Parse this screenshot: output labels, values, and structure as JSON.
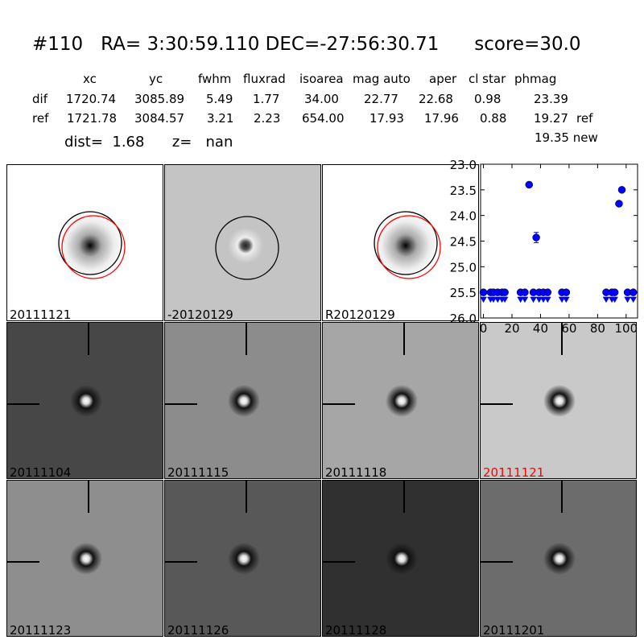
{
  "header": {
    "title": "#110   RA= 3:30:59.110 DEC=-27:56:30.71      score=30.0",
    "columns": [
      "xc",
      "yc",
      "fwhm",
      "fluxrad",
      "isoarea",
      "mag auto",
      "aper",
      "cl star",
      "phmag"
    ],
    "rows": [
      {
        "label": "dif",
        "values": [
          "1720.74",
          "3085.89",
          "5.49",
          "1.77",
          "34.00",
          "22.77",
          "22.68",
          "0.98",
          "23.39"
        ],
        "suffix": ""
      },
      {
        "label": "ref",
        "values": [
          "1721.78",
          "3084.57",
          "3.21",
          "2.23",
          "654.00",
          "17.93",
          "17.96",
          "0.88",
          "19.27"
        ],
        "suffix": "ref"
      }
    ],
    "new_mag": "19.35 new",
    "dist": "dist=  1.68",
    "z": "z=   nan"
  },
  "panels": [
    {
      "label": "20111121",
      "type": "ref-psf",
      "bg": "#ffffff",
      "label_color": "#000000"
    },
    {
      "label": "-20120129",
      "type": "diff",
      "bg": "#c4c4c4",
      "label_color": "#000000"
    },
    {
      "label": "R20120129",
      "type": "ref-psf",
      "bg": "#ffffff",
      "label_color": "#000000"
    },
    {
      "label": "20111104",
      "type": "stamp",
      "bg": "#474747",
      "label_color": "#000000"
    },
    {
      "label": "20111115",
      "type": "stamp",
      "bg": "#8c8c8c",
      "label_color": "#000000"
    },
    {
      "label": "20111118",
      "type": "stamp",
      "bg": "#a6a6a6",
      "label_color": "#000000"
    },
    {
      "label": "20111121",
      "type": "stamp",
      "bg": "#c9c9c9",
      "label_color": "#ff0000"
    },
    {
      "label": "20111123",
      "type": "stamp",
      "bg": "#8e8e8e",
      "label_color": "#000000"
    },
    {
      "label": "20111126",
      "type": "stamp",
      "bg": "#585858",
      "label_color": "#000000"
    },
    {
      "label": "20111128",
      "type": "stamp",
      "bg": "#303030",
      "label_color": "#000000"
    },
    {
      "label": "20111201",
      "type": "stamp",
      "bg": "#6c6c6c",
      "label_color": "#000000"
    }
  ],
  "chart_data": {
    "type": "scatter",
    "xlim": [
      -2,
      108
    ],
    "ylim": [
      26.0,
      23.0
    ],
    "y_inverted": true,
    "xticks": [
      "0",
      "20",
      "40",
      "60",
      "80",
      "100"
    ],
    "yticks": [
      "23.0",
      "23.5",
      "24.0",
      "24.5",
      "25.0",
      "25.5",
      "26.0"
    ],
    "color": "#0000ff",
    "detections": [
      {
        "x": 32,
        "y": 23.4,
        "err": 0.02
      },
      {
        "x": 37,
        "y": 24.43,
        "err": 0.1
      },
      {
        "x": 95,
        "y": 23.77,
        "err": 0.04
      },
      {
        "x": 97,
        "y": 23.5,
        "err": 0.03
      }
    ],
    "upper_limits": {
      "y": 25.5,
      "x": [
        0,
        5,
        7,
        10,
        13,
        15,
        26,
        29,
        35,
        39,
        42,
        45,
        55,
        58,
        86,
        90,
        92,
        101,
        105
      ]
    }
  }
}
